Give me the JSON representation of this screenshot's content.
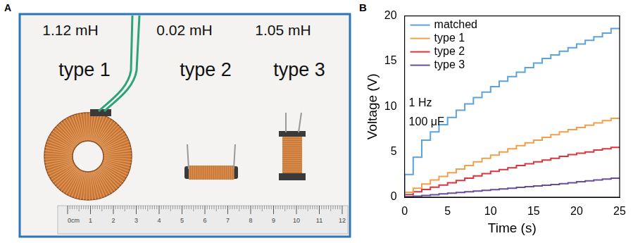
{
  "panel_a": {
    "panel_label": "A",
    "items": [
      {
        "inductance": "1.12 mH",
        "name": "type 1"
      },
      {
        "inductance": "0.02 mH",
        "name": "type 2"
      },
      {
        "inductance": "1.05 mH",
        "name": "type 3"
      }
    ],
    "ruler_labels": [
      "0cm",
      "1",
      "2",
      "3",
      "4",
      "5",
      "6",
      "7",
      "8",
      "9",
      "10",
      "11",
      "12"
    ]
  },
  "chart_data": {
    "panel_label": "B",
    "type": "line",
    "line_style": "stepped",
    "x_label": "Time (s)",
    "y_label": "Voltage (V)",
    "annotations": [
      "1 Hz",
      "100 μF"
    ],
    "x": [
      0,
      1,
      2,
      3,
      4,
      5,
      6,
      7,
      8,
      9,
      10,
      11,
      12,
      13,
      14,
      15,
      16,
      17,
      18,
      19,
      20,
      21,
      22,
      23,
      24,
      25
    ],
    "series": [
      {
        "name": "matched",
        "color": "#5ba3d9",
        "values": [
          0,
          2.5,
          4.4,
          6.3,
          7.2,
          8.0,
          8.8,
          9.6,
          10.3,
          11.0,
          11.6,
          12.2,
          12.8,
          13.3,
          13.8,
          14.3,
          14.8,
          15.3,
          15.7,
          16.1,
          16.5,
          16.9,
          17.3,
          17.7,
          18.1,
          18.6
        ]
      },
      {
        "name": "type 1",
        "color": "#f0a04b",
        "values": [
          0,
          0.55,
          1.0,
          1.45,
          1.9,
          2.3,
          2.7,
          3.1,
          3.5,
          3.9,
          4.3,
          4.65,
          5.0,
          5.35,
          5.7,
          6.0,
          6.3,
          6.6,
          6.9,
          7.2,
          7.45,
          7.7,
          7.95,
          8.2,
          8.45,
          8.7
        ]
      },
      {
        "name": "type 2",
        "color": "#d9363e",
        "values": [
          0,
          0.3,
          0.6,
          0.85,
          1.1,
          1.35,
          1.6,
          1.85,
          2.1,
          2.35,
          2.6,
          2.85,
          3.05,
          3.25,
          3.5,
          3.7,
          3.9,
          4.1,
          4.3,
          4.5,
          4.7,
          4.85,
          5.0,
          5.2,
          5.35,
          5.5
        ]
      },
      {
        "name": "type 3",
        "color": "#6a4c9c",
        "values": [
          0,
          0.05,
          0.12,
          0.2,
          0.28,
          0.36,
          0.44,
          0.52,
          0.6,
          0.68,
          0.76,
          0.84,
          0.92,
          1.0,
          1.08,
          1.16,
          1.24,
          1.32,
          1.4,
          1.5,
          1.6,
          1.7,
          1.8,
          1.9,
          2.0,
          2.1
        ]
      }
    ],
    "xlim": [
      0,
      25
    ],
    "xticks": [
      0,
      5,
      10,
      15,
      20,
      25
    ],
    "ylim": [
      0,
      20
    ],
    "yticks": [
      0,
      5,
      10,
      15,
      20
    ],
    "grid": false,
    "legend": "upper left"
  }
}
